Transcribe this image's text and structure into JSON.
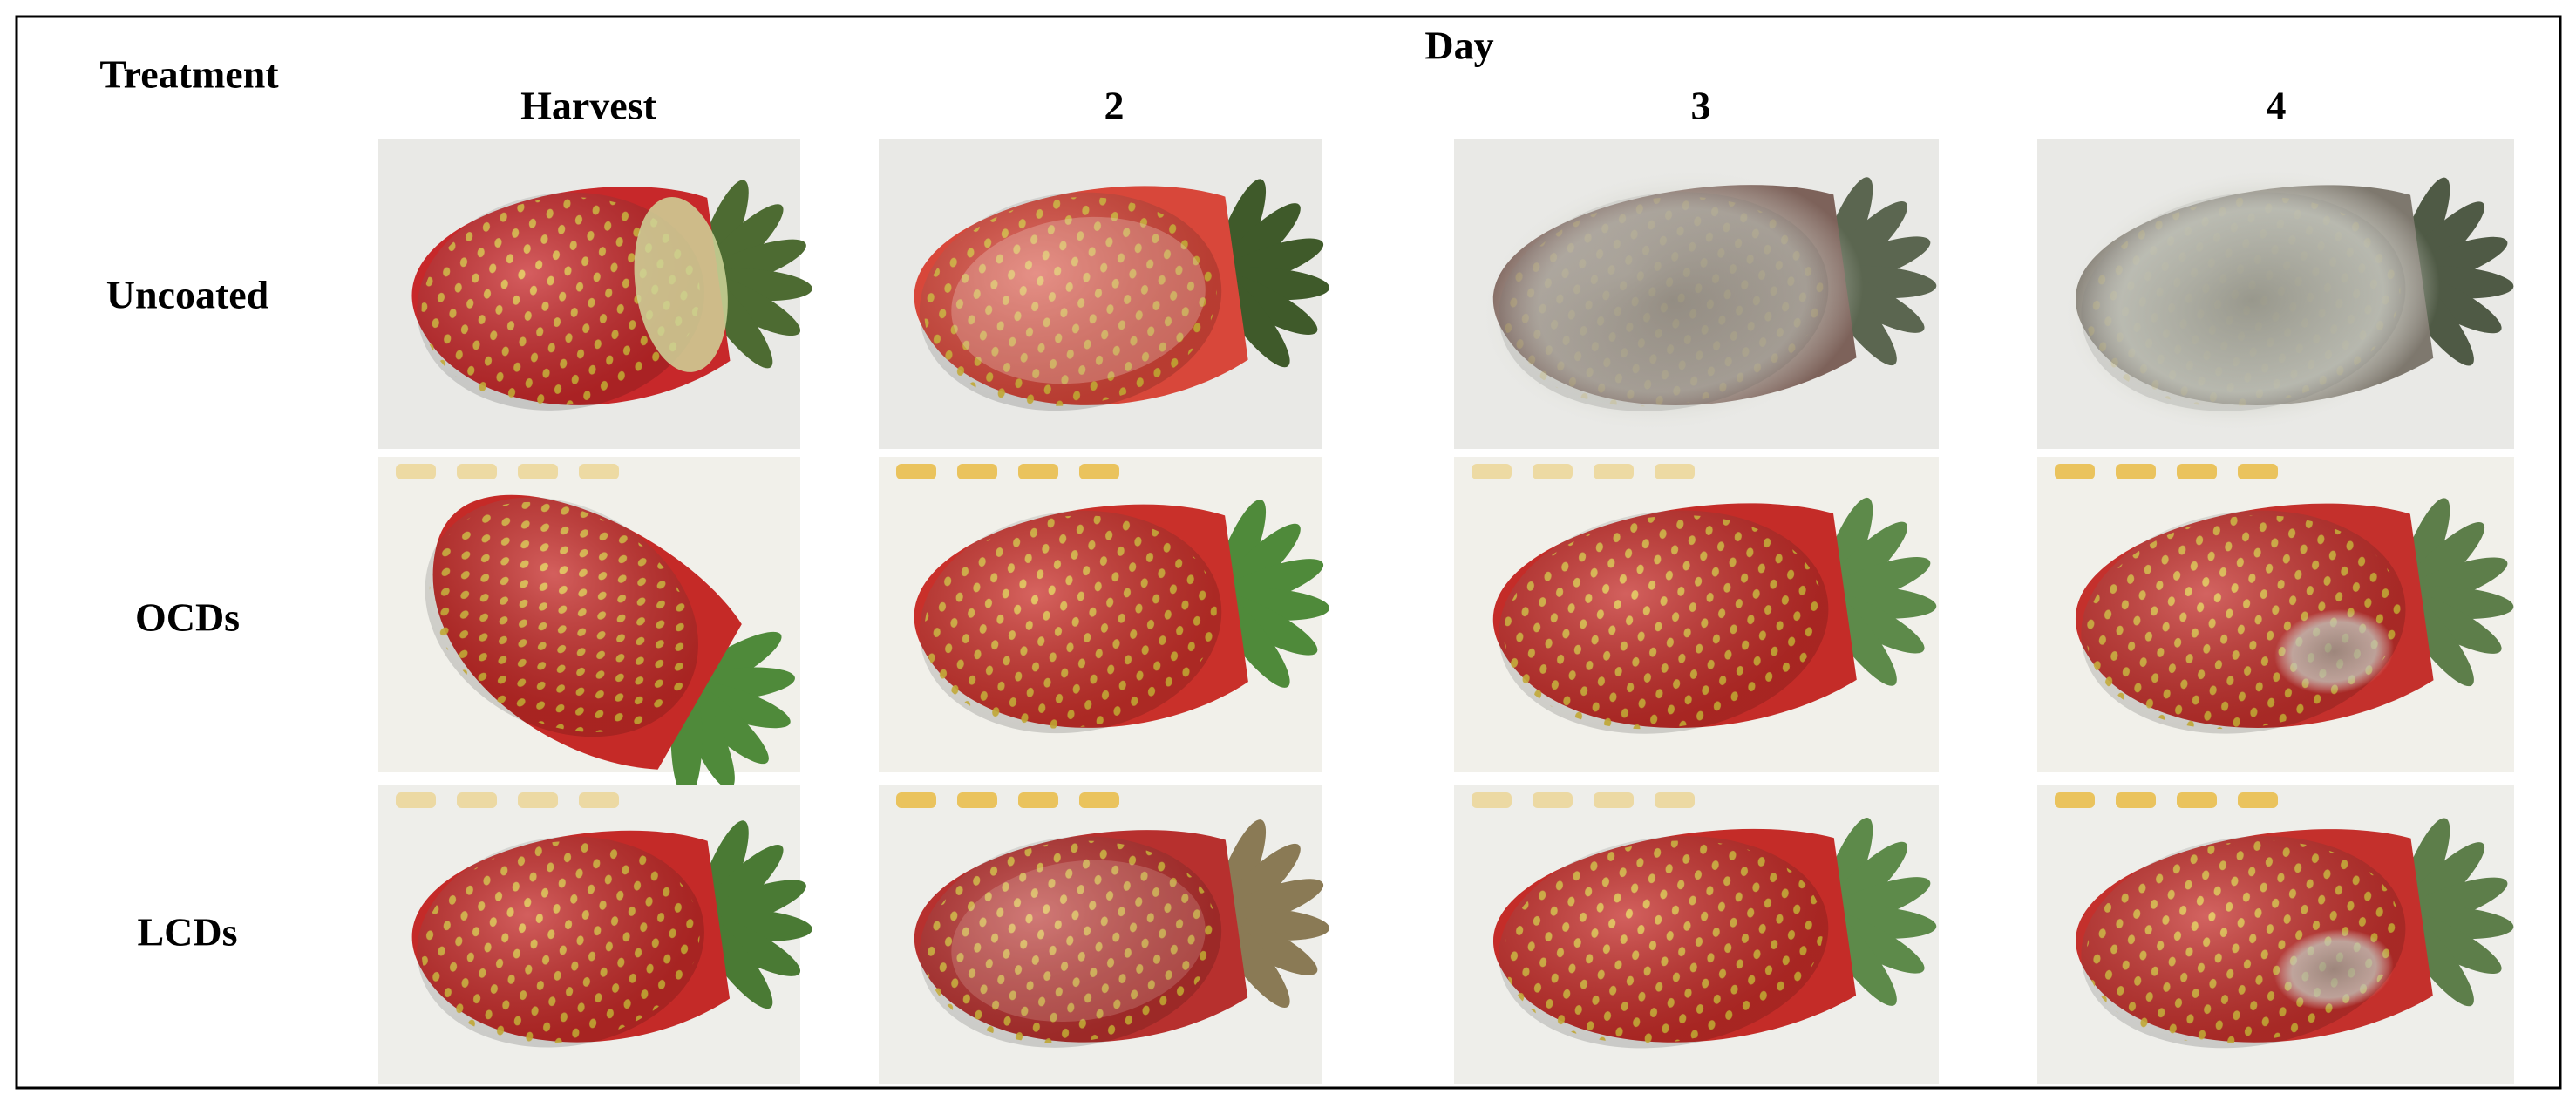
{
  "header": {
    "row_title": "Treatment",
    "column_group_title": "Day",
    "columns": [
      "Harvest",
      "2",
      "3",
      "4"
    ]
  },
  "rows": [
    {
      "label": "Uncoated"
    },
    {
      "label": "OCDs"
    },
    {
      "label": "LCDs"
    }
  ]
}
